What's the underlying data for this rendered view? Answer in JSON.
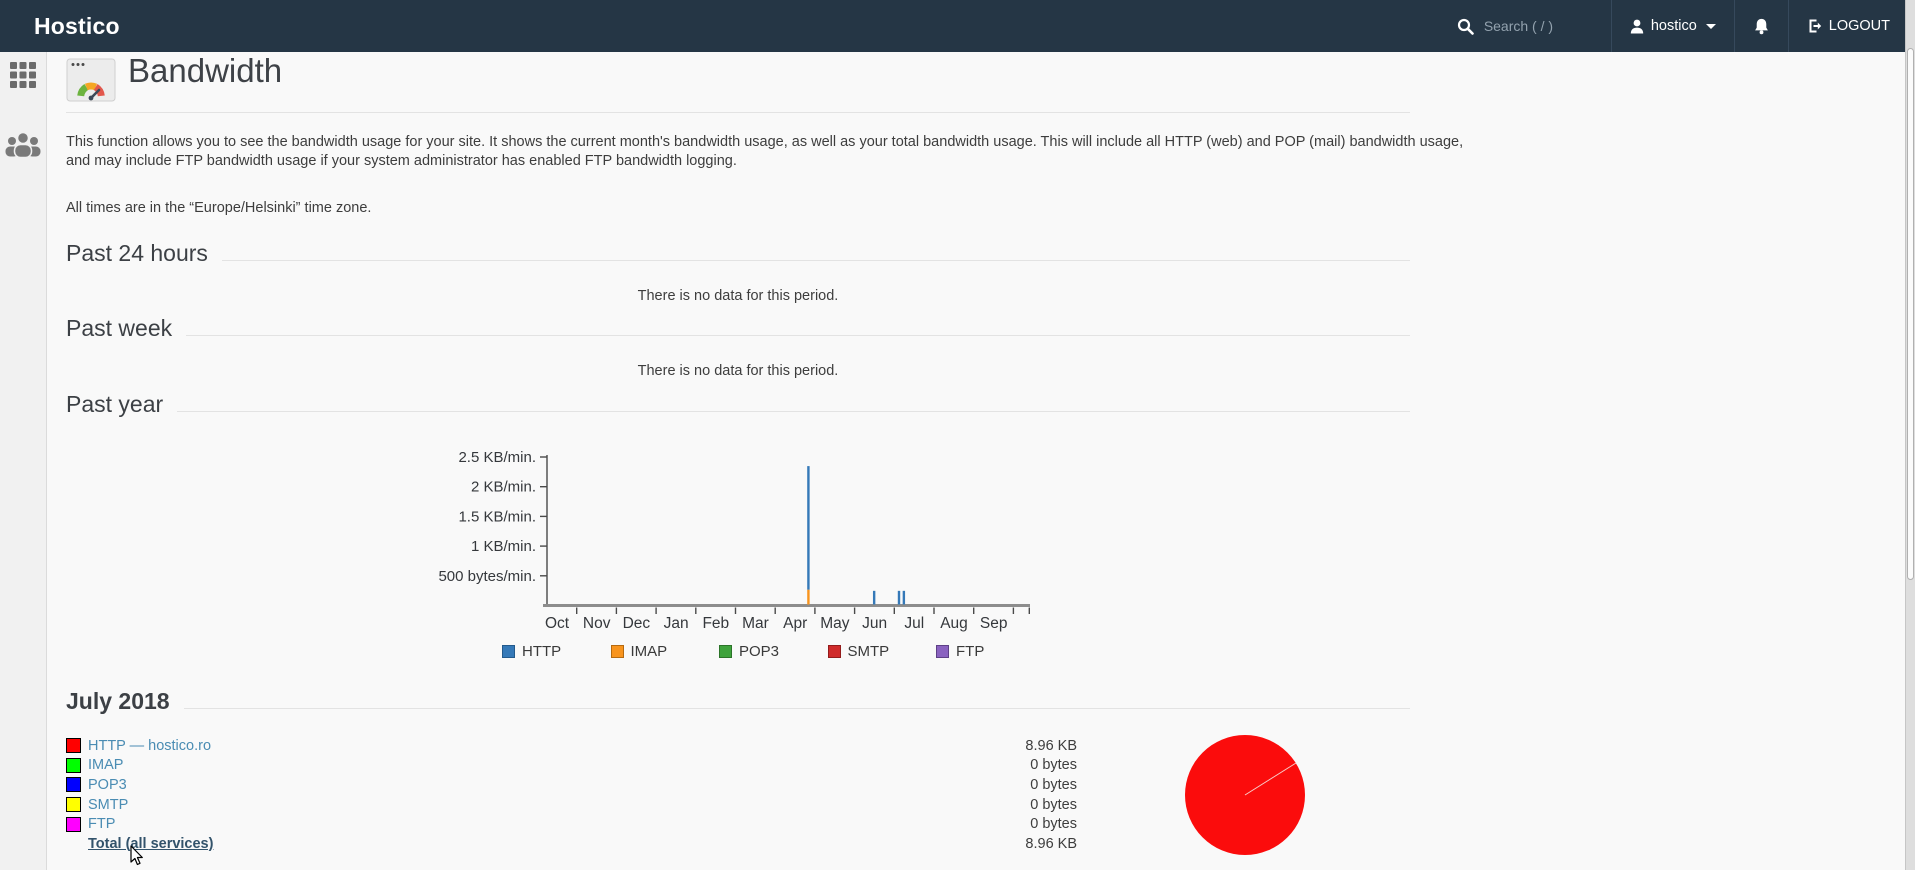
{
  "topbar": {
    "brand": "Hostico",
    "search_placeholder": "Search ( / )",
    "username": "hostico",
    "logout_label": "LOGOUT"
  },
  "sidebar": {
    "items": [
      {
        "name": "apps-grid"
      },
      {
        "name": "user-group"
      }
    ]
  },
  "page": {
    "title": "Bandwidth",
    "description": "This function allows you to see the bandwidth usage for your site. It shows the current month's bandwidth usage, as well as your total bandwidth usage. This will include all HTTP (web) and POP (mail) bandwidth usage, and may include FTP bandwidth usage if your system administrator has enabled FTP bandwidth logging.",
    "timezone_note": "All times are in the “Europe/Helsinki” time zone."
  },
  "sections": {
    "past_24_hours": {
      "heading": "Past 24 hours",
      "empty_message": "There is no data for this period."
    },
    "past_week": {
      "heading": "Past week",
      "empty_message": "There is no data for this period."
    },
    "past_year": {
      "heading": "Past year"
    },
    "current_month": {
      "heading": "July 2018"
    }
  },
  "chart_data": [
    {
      "type": "bar",
      "title": "Past year bandwidth (KB/min)",
      "categories": [
        "Oct",
        "Nov",
        "Dec",
        "Jan",
        "Feb",
        "Mar",
        "Apr",
        "May",
        "Jun",
        "Jul",
        "Aug",
        "Sep"
      ],
      "y_ticks": [
        {
          "label": "2.5 KB/min.",
          "value": 2.5
        },
        {
          "label": "2 KB/min.",
          "value": 2
        },
        {
          "label": "1.5 KB/min.",
          "value": 1.5
        },
        {
          "label": "1 KB/min.",
          "value": 1
        },
        {
          "label": "500 bytes/min.",
          "value": 0.5
        }
      ],
      "ylim": [
        0,
        2.75
      ],
      "grid": false,
      "legend_position": "bottom",
      "series_colors": {
        "HTTP": "#3579b8",
        "IMAP": "#f8941d",
        "POP3": "#3fa33c",
        "SMTP": "#d02b2b",
        "FTP": "#8a63c0"
      },
      "bars": [
        {
          "month": "Apr",
          "x_frac": 0.545,
          "segments": [
            {
              "service": "IMAP",
              "kb_per_min": 0.25
            },
            {
              "service": "HTTP",
              "kb_per_min": 2.08
            }
          ]
        },
        {
          "month": "Jun",
          "x_frac": 0.68,
          "segments": [
            {
              "service": "HTTP",
              "kb_per_min": 0.23
            }
          ]
        },
        {
          "month": "Jul",
          "x_frac": 0.731,
          "segments": [
            {
              "service": "HTTP",
              "kb_per_min": 0.23
            }
          ]
        },
        {
          "month": "Jul",
          "x_frac": 0.741,
          "segments": [
            {
              "service": "HTTP",
              "kb_per_min": 0.23
            }
          ]
        }
      ]
    },
    {
      "type": "pie",
      "title": "July 2018 usage by service",
      "slices": [
        {
          "label": "HTTP — hostico.ro",
          "value": "8.96 KB",
          "fraction": 0.99,
          "color": "#fb0c0c"
        }
      ]
    }
  ],
  "legend": {
    "items": [
      {
        "label": "HTTP",
        "color": "#3579b8",
        "border": "#235a8c"
      },
      {
        "label": "IMAP",
        "color": "#f8941d",
        "border": "#b56a10"
      },
      {
        "label": "POP3",
        "color": "#3fa33c",
        "border": "#2c7429"
      },
      {
        "label": "SMTP",
        "color": "#d02b2b",
        "border": "#931c1c"
      },
      {
        "label": "FTP",
        "color": "#8a63c0",
        "border": "#5e4187"
      }
    ]
  },
  "month_table": {
    "rows": [
      {
        "label": "HTTP — hostico.ro",
        "swatch": "#ff0000",
        "value": "8.96 KB"
      },
      {
        "label": "IMAP",
        "swatch": "#00ff00",
        "value": "0 bytes"
      },
      {
        "label": "POP3",
        "swatch": "#0000ff",
        "value": "0 bytes"
      },
      {
        "label": "SMTP",
        "swatch": "#ffff00",
        "value": "0 bytes"
      },
      {
        "label": "FTP",
        "swatch": "#ff00ff",
        "value": "0 bytes"
      }
    ],
    "total": {
      "label": "Total (all services)",
      "value": "8.96 KB"
    }
  }
}
